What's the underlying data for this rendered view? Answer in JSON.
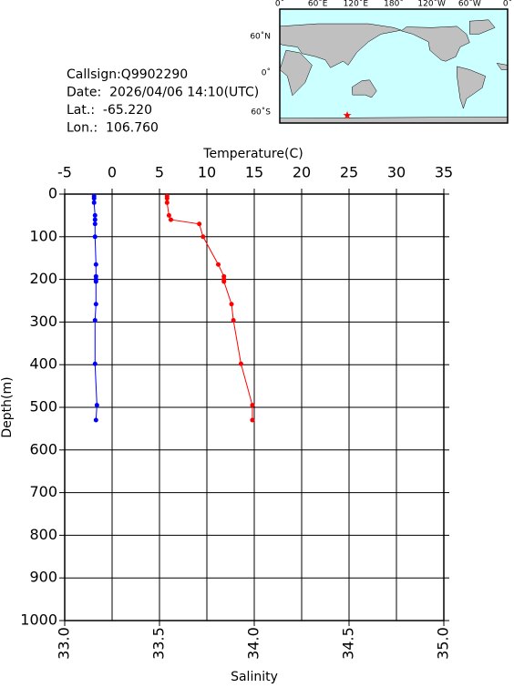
{
  "chart_data": {
    "type": "profile",
    "y": [
      5,
      10,
      20,
      50,
      60,
      70,
      100,
      165,
      193,
      200,
      205,
      258,
      296,
      398,
      495,
      530
    ],
    "ylabel": "Depth(m)",
    "ylim": [
      0,
      1000
    ],
    "y_inverted": true,
    "yticks": [
      0,
      100,
      200,
      300,
      400,
      500,
      600,
      700,
      800,
      900,
      1000
    ],
    "xlabel": "Salinity",
    "xlim": [
      33,
      35
    ],
    "xticks": [
      {
        "value": 33,
        "label": "33.0"
      },
      {
        "value": 33.5,
        "label": "33.5"
      },
      {
        "value": 34,
        "label": "34.0"
      },
      {
        "value": 34.5,
        "label": "34.5"
      },
      {
        "value": 35,
        "label": "35.0"
      }
    ],
    "x2label": "Temperature(C)",
    "x2lim": [
      -5,
      35
    ],
    "x2ticks": [
      -5,
      0,
      5,
      10,
      15,
      20,
      25,
      30,
      35
    ],
    "grid": true,
    "series": [
      {
        "color": "#0000ff",
        "axis": "x2",
        "values": [
          -1.9,
          -1.9,
          -1.9,
          -1.8,
          -1.8,
          -1.8,
          -1.8,
          -1.7,
          -1.7,
          -1.7,
          -1.7,
          -1.7,
          -1.8,
          -1.8,
          -1.6,
          -1.7
        ]
      },
      {
        "color": "#ff0000",
        "axis": "x",
        "values": [
          33.54,
          33.54,
          33.54,
          33.55,
          33.56,
          33.71,
          33.73,
          33.81,
          33.84,
          33.84,
          33.84,
          33.88,
          33.89,
          33.93,
          33.99,
          33.99
        ]
      }
    ]
  },
  "info": [
    "Callsign:Q9902290",
    "Date:  2026/04/06 14:10(UTC)",
    "Lat.:  -65.220",
    "Lon.:  106.760"
  ],
  "map": {
    "lon_labels": [
      "0˚",
      "60˚E",
      "120˚E",
      "180˚",
      "120˚W",
      "60˚W",
      "0˚"
    ],
    "lat_labels": [
      "60˚N",
      "0˚",
      "60˚S"
    ]
  }
}
